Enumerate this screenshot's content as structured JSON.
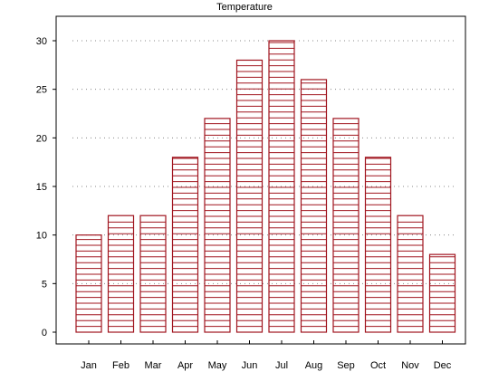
{
  "chart_data": {
    "type": "bar",
    "title": "Temperature",
    "xlabel": "",
    "ylabel": "",
    "categories": [
      "Jan",
      "Feb",
      "Mar",
      "Apr",
      "May",
      "Jun",
      "Jul",
      "Aug",
      "Sep",
      "Oct",
      "Nov",
      "Dec"
    ],
    "values": [
      10,
      12,
      12,
      18,
      22,
      28,
      30,
      26,
      22,
      18,
      12,
      8
    ],
    "ylim": [
      0,
      32
    ],
    "yticks": [
      0,
      5,
      10,
      15,
      20,
      25,
      30
    ],
    "ytick_labels": [
      "0",
      "5",
      "10",
      "15",
      "20",
      "25",
      "30"
    ],
    "grid": "horizontal dotted",
    "bar_fill": "hatched horizontal lines",
    "colors": {
      "bar": "#a0141e",
      "grid": "#888888",
      "axis": "#000000"
    }
  }
}
